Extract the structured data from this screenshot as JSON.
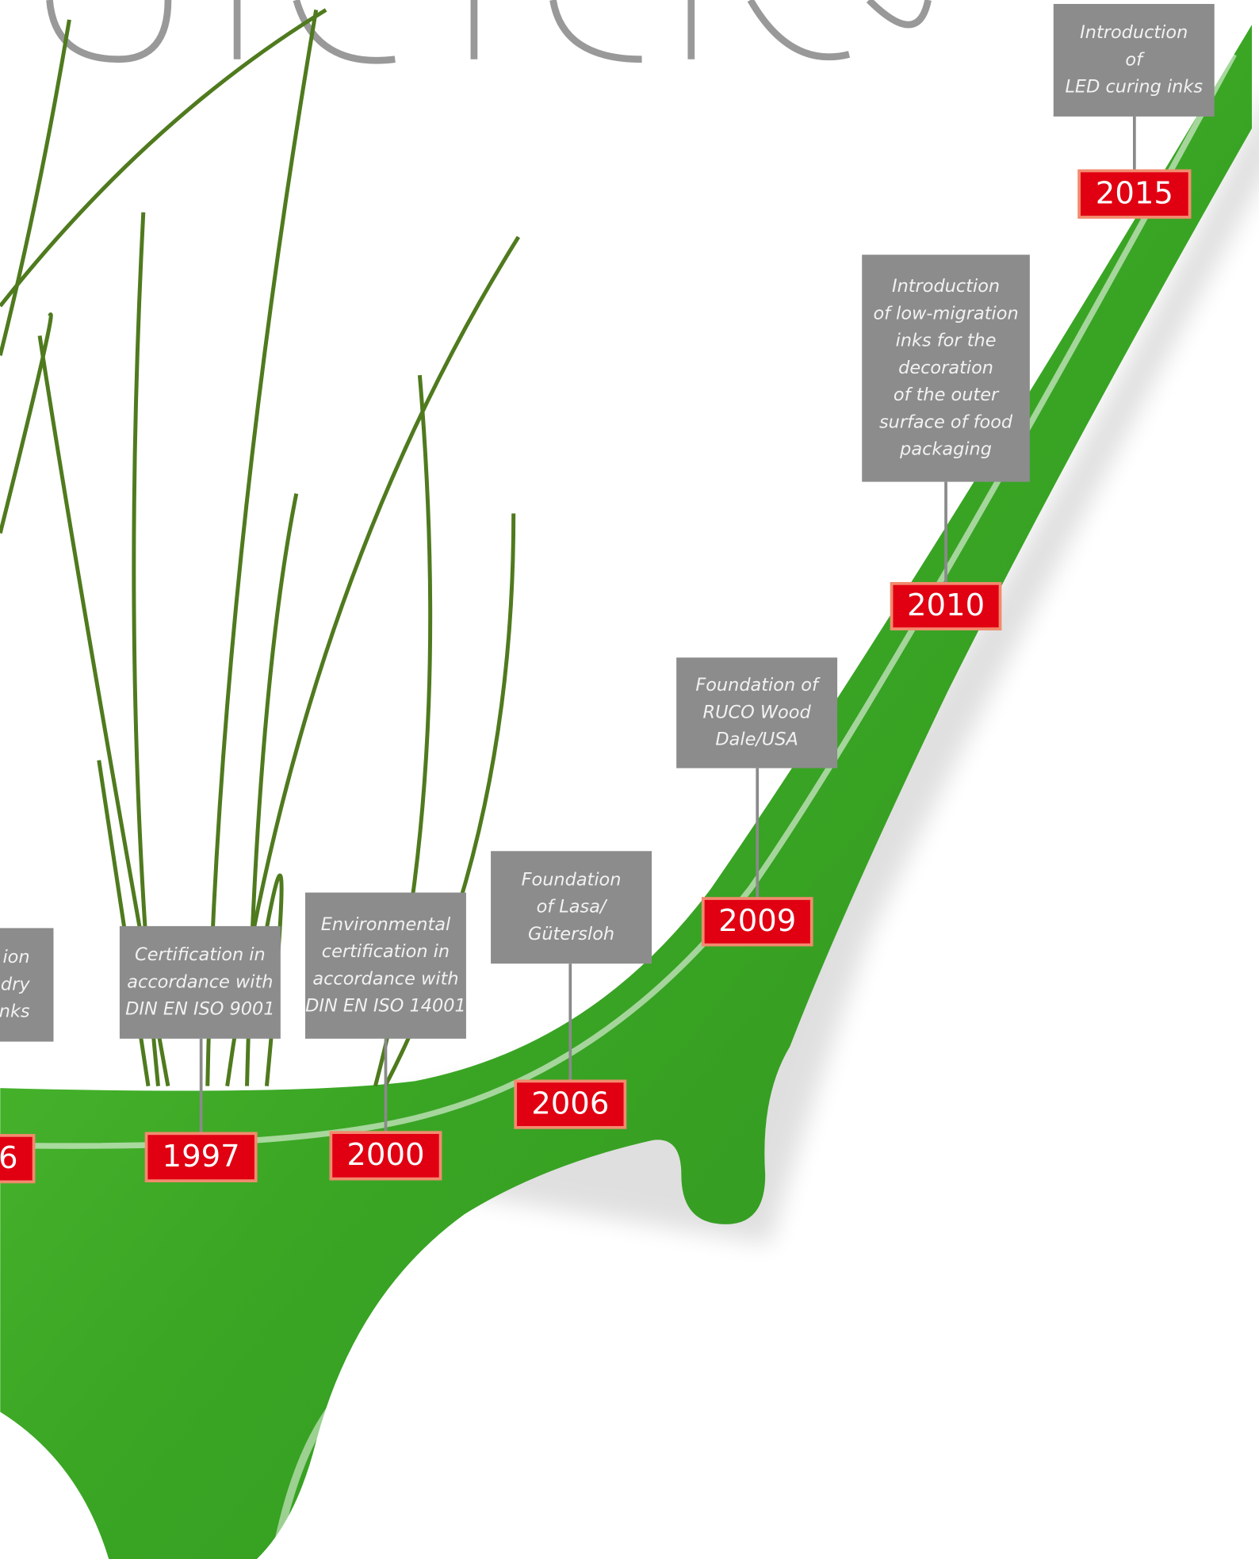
{
  "events": [
    {
      "year": "6",
      "lines": [
        "ion",
        "dry",
        "nks"
      ]
    },
    {
      "year": "1997",
      "lines": [
        "Certification in",
        "accordance with",
        "DIN EN ISO 9001"
      ]
    },
    {
      "year": "2000",
      "lines": [
        "Environmental",
        "certification in",
        "accordance with",
        "DIN EN ISO 14001"
      ]
    },
    {
      "year": "2006",
      "lines": [
        "Foundation",
        "of Lasa/",
        "Gütersloh"
      ]
    },
    {
      "year": "2009",
      "lines": [
        "Foundation of",
        "RUCO Wood",
        "Dale/USA"
      ]
    },
    {
      "year": "2010",
      "lines": [
        "Introduction",
        "of low-migration",
        "inks for the",
        "decoration",
        "of the outer",
        "surface of food",
        "packaging"
      ]
    },
    {
      "year": "2015",
      "lines": [
        "Introduction",
        "of",
        "LED curing inks"
      ]
    }
  ]
}
